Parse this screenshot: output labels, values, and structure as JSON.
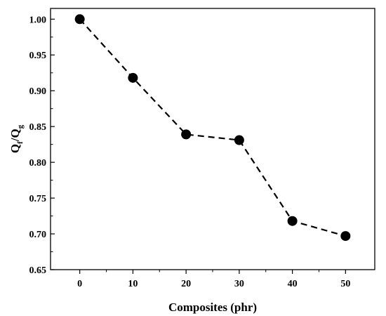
{
  "chart_data": {
    "type": "line",
    "xlabel": "Composites (phr)",
    "ylabel": {
      "main": "Q",
      "sub1": "f",
      "sep": "/Q",
      "sub2": "g"
    },
    "x": [
      0,
      10,
      20,
      30,
      40,
      50
    ],
    "series": [
      {
        "values": [
          1.0,
          0.918,
          0.839,
          0.831,
          0.718,
          0.697
        ],
        "color": "#000000",
        "line_style": "dashed",
        "marker": "filled-circle"
      }
    ],
    "xlim": [
      -5.5,
      55.5
    ],
    "ylim": [
      0.65,
      1.015
    ],
    "x_ticks": [
      "0",
      "10",
      "20",
      "30",
      "40",
      "50"
    ],
    "y_ticks": [
      "0.65",
      "0.70",
      "0.75",
      "0.80",
      "0.85",
      "0.90",
      "0.95",
      "1.00"
    ],
    "grid": false,
    "legend": "none"
  }
}
